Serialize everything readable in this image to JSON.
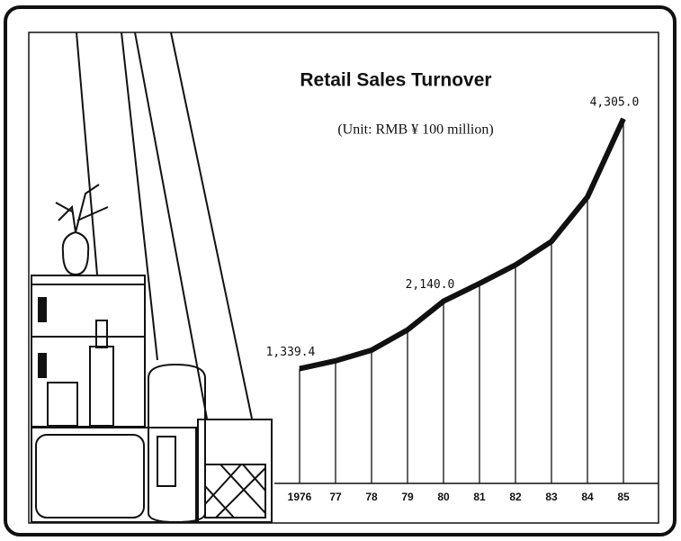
{
  "chart_data": {
    "type": "line",
    "title": "Retail Sales Turnover",
    "subtitle": "(Unit: RMB ¥ 100 million)",
    "categories": [
      "1976",
      "77",
      "78",
      "79",
      "80",
      "81",
      "82",
      "83",
      "84",
      "85"
    ],
    "values": [
      1339.4,
      1433,
      1559,
      1800,
      2140.0,
      2350,
      2570,
      2849,
      3376,
      4305.0
    ],
    "value_labels": [
      "1,339.4",
      null,
      null,
      null,
      "2,140.0",
      null,
      null,
      null,
      null,
      "4,305.0"
    ],
    "color": "#111111",
    "ylim": [
      0,
      4400
    ]
  }
}
